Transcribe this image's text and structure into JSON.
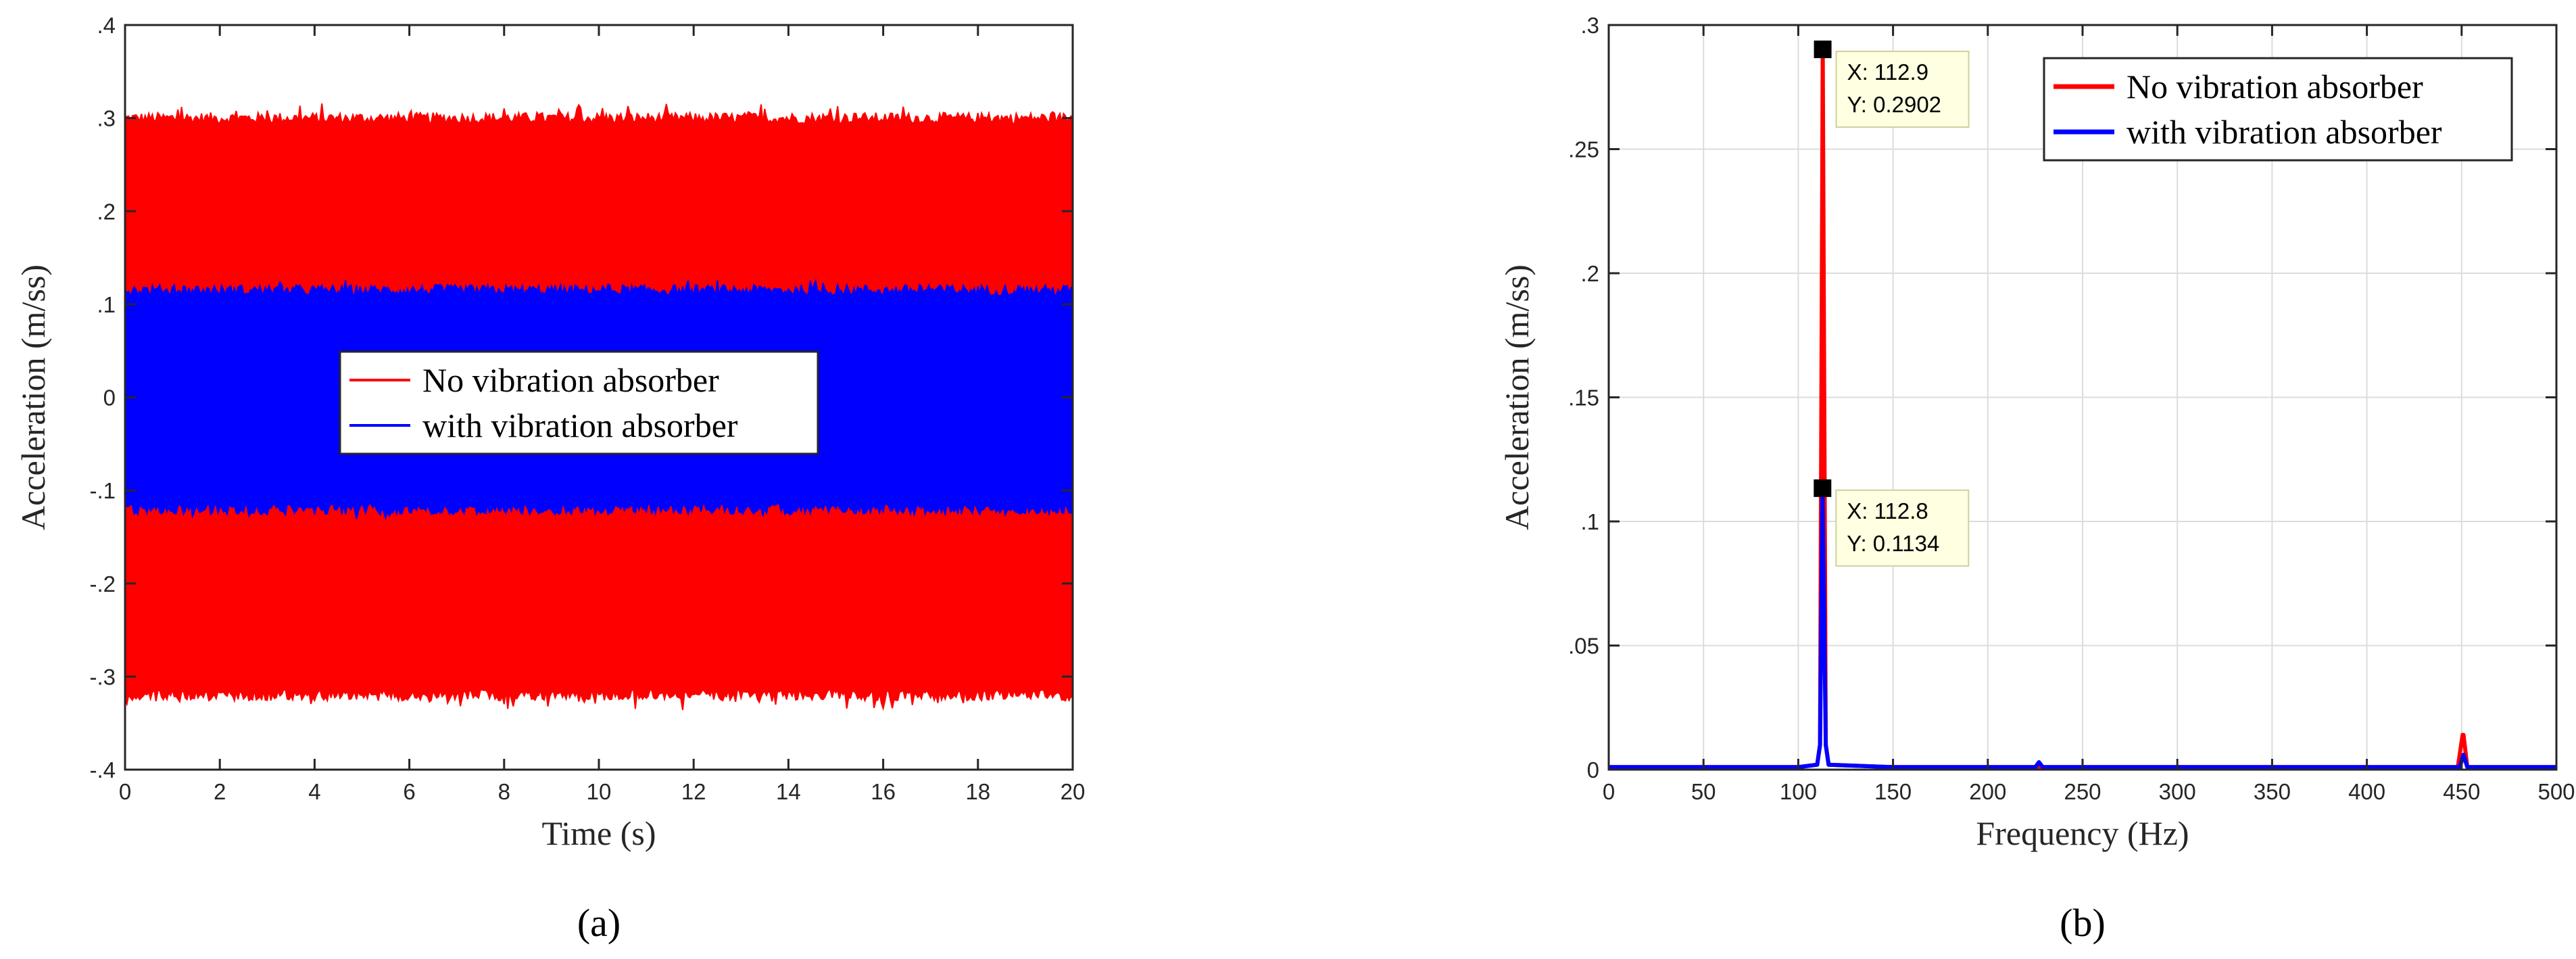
{
  "chart_data": [
    {
      "panel": "a",
      "type": "line",
      "caption": "(a)",
      "xlabel": "Time (s)",
      "ylabel": "Acceleration (m/ss)",
      "xlim": [
        0,
        20
      ],
      "ylim": [
        -0.4,
        0.4
      ],
      "xticks": [
        0,
        2,
        4,
        6,
        8,
        10,
        12,
        14,
        16,
        18,
        20
      ],
      "yticks": [
        -0.4,
        -0.3,
        -0.2,
        -0.1,
        0,
        0.1,
        0.2,
        0.3,
        0.4
      ],
      "grid": false,
      "legend_position": "center",
      "series": [
        {
          "name": "No vibration absorber",
          "color": "#ff0000",
          "x_range": [
            0,
            20
          ],
          "upper_envelope": 0.3,
          "lower_envelope": -0.32,
          "peak_max": 0.31,
          "peak_min": -0.33
        },
        {
          "name": "with vibration absorber",
          "color": "#0000ff",
          "x_range": [
            0,
            20
          ],
          "upper_envelope": 0.115,
          "lower_envelope": -0.12,
          "peak_max": 0.12,
          "peak_min": -0.125
        }
      ]
    },
    {
      "panel": "b",
      "type": "line",
      "caption": "(b)",
      "xlabel": "Frequency (Hz)",
      "ylabel": "Acceleration (m/ss)",
      "xlim": [
        0,
        500
      ],
      "ylim": [
        0,
        0.3
      ],
      "xticks": [
        0,
        50,
        100,
        150,
        200,
        250,
        300,
        350,
        400,
        450,
        500
      ],
      "yticks": [
        0,
        0.05,
        0.1,
        0.15,
        0.2,
        0.25,
        0.3
      ],
      "grid": true,
      "legend_position": "top-right",
      "series": [
        {
          "name": "No vibration absorber",
          "color": "#ff0000",
          "x": [
            0,
            50,
            100,
            110,
            111.5,
            112.9,
            114.5,
            116,
            150,
            200,
            225,
            227,
            300,
            400,
            448,
            450.5,
            451,
            453,
            500
          ],
          "y": [
            0.001,
            0.001,
            0.001,
            0.002,
            0.01,
            0.2902,
            0.01,
            0.002,
            0.001,
            0.001,
            0.001,
            0.001,
            0.001,
            0.001,
            0.001,
            0.014,
            0.014,
            0.001,
            0.001
          ]
        },
        {
          "name": "with vibration absorber",
          "color": "#0000ff",
          "x": [
            0,
            50,
            100,
            110,
            111.5,
            112.8,
            114.5,
            116,
            150,
            200,
            225,
            227,
            229,
            300,
            400,
            449,
            451,
            453,
            500
          ],
          "y": [
            0.001,
            0.001,
            0.001,
            0.002,
            0.01,
            0.1134,
            0.01,
            0.002,
            0.001,
            0.001,
            0.001,
            0.003,
            0.001,
            0.001,
            0.001,
            0.001,
            0.006,
            0.001,
            0.001
          ]
        }
      ],
      "datatips": [
        {
          "x": 112.9,
          "y": 0.2902,
          "lines": [
            "X: 112.9",
            "Y: 0.2902"
          ]
        },
        {
          "x": 112.8,
          "y": 0.1134,
          "lines": [
            "X: 112.8",
            "Y: 0.1134"
          ]
        }
      ]
    }
  ]
}
